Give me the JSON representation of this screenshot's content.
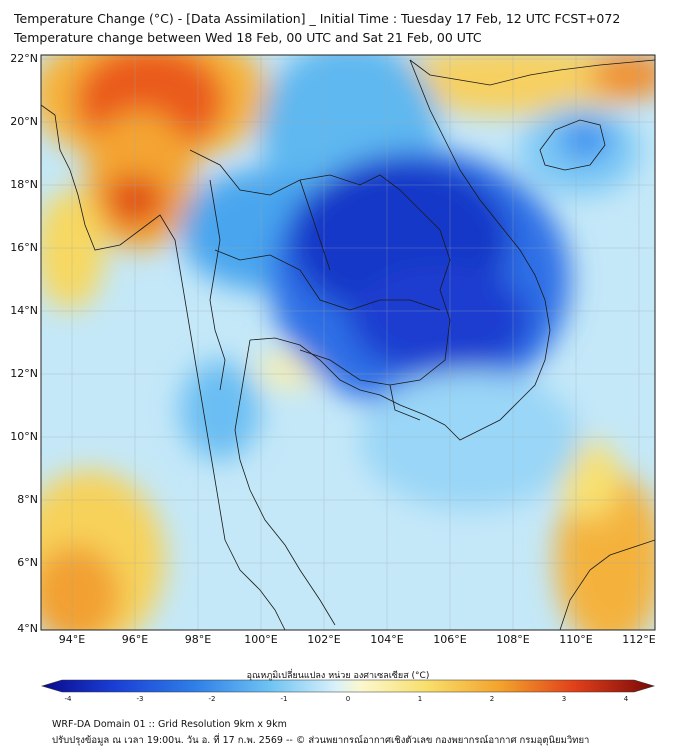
{
  "header": {
    "title": "Temperature Change (°C) - [Data Assimilation] _ Initial Time : Tuesday 17 Feb, 12 UTC FCST+072",
    "subtitle": "Temperature change between Wed 18 Feb, 00 UTC and Sat 21 Feb, 00 UTC"
  },
  "map": {
    "lat_labels": [
      "22°N",
      "20°N",
      "18°N",
      "16°N",
      "14°N",
      "12°N",
      "10°N",
      "8°N",
      "6°N",
      "4°N"
    ],
    "lon_labels": [
      "94°E",
      "96°E",
      "98°E",
      "100°E",
      "102°E",
      "104°E",
      "106°E",
      "108°E",
      "110°E",
      "112°E"
    ],
    "lat_range": [
      4,
      22.3
    ],
    "lon_range": [
      93,
      112.5
    ]
  },
  "colorbar": {
    "title": "อุณหภูมิเปลี่ยนแปลง หน่วย องศาเซลเซียส (°C)",
    "ticks": [
      "-4",
      "-3",
      "-2",
      "-1",
      "0",
      "1",
      "2",
      "3",
      "4"
    ],
    "range": [
      -4,
      4
    ],
    "colors": [
      "#0a0a8c",
      "#1a3fd6",
      "#3a8cf0",
      "#7cc8f5",
      "#d6f0fa",
      "#fbf5c0",
      "#f7c94a",
      "#f07a18",
      "#d81a10",
      "#7a0808"
    ]
  },
  "footer": {
    "line1": "WRF-DA Domain 01 :: Grid Resolution 9km x 9km",
    "line2": "ปรับปรุงข้อมูล ณ เวลา 19:00น. วัน อ. ที่ 17 ก.พ. 2569 -- © ส่วนพยากรณ์อากาศเชิงตัวเลข กองพยากรณ์อากาศ กรมอุตุนิยมวิทยา"
  }
}
